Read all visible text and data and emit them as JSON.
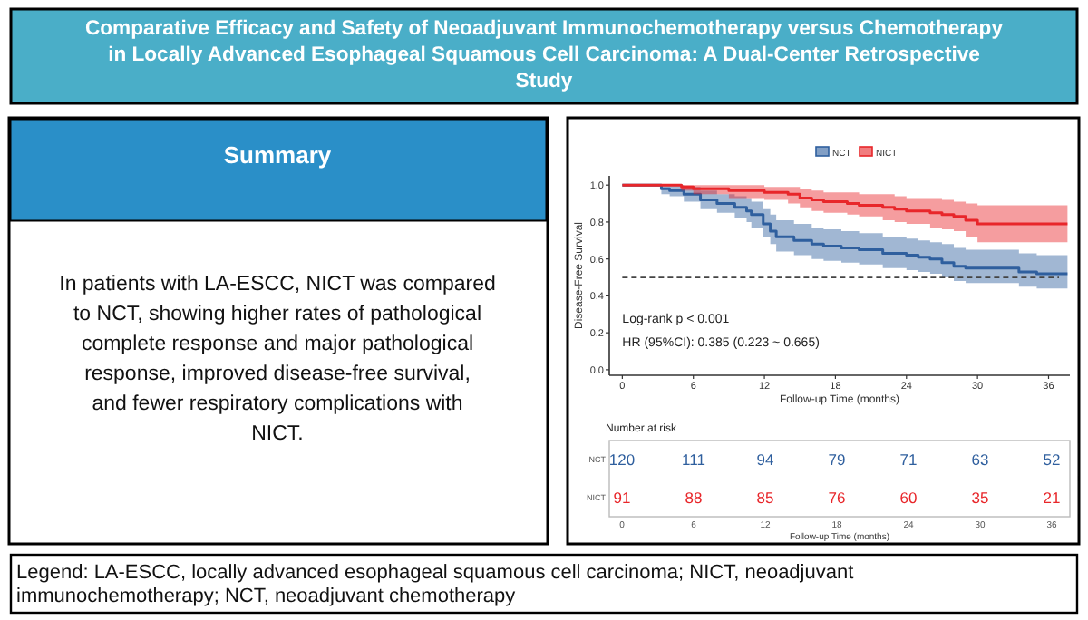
{
  "chart_data": [
    {
      "type": "other",
      "title": "Comparative Efficacy and Safety of Neoadjuvant Immunochemotherapy versus Chemotherapy in Locally Advanced Esophageal Squamous Cell Carcinoma: A Dual-Center Retrospective Study",
      "annotations": [
        "Summary",
        "In patients with LA-ESCC, NICT was compared to NCT, showing higher rates of pathological complete response and major pathological response, improved disease-free survival, and fewer respiratory complications with NICT.",
        "Legend: LA-ESCC, locally advanced esophageal squamous cell carcinoma; NICT, neoadjuvant immunochemotherapy; NCT,  neoadjuvant chemotherapy"
      ]
    },
    {
      "type": "step",
      "xlabel": "Follow-up Time (months)",
      "ylabel": "Disease-Free Survival",
      "xlim": [
        -1.1,
        37.8
      ],
      "ylim": [
        -0.03,
        1.05
      ],
      "xticks": [
        0,
        6,
        12,
        18,
        24,
        30,
        36
      ],
      "yticks": [
        {
          "value": 0,
          "label": "0.0"
        },
        {
          "value": 0.2,
          "label": "0.2"
        },
        {
          "value": 0.4,
          "label": "0.4"
        },
        {
          "value": 0.6,
          "label": "0.6"
        },
        {
          "value": 0.8,
          "label": "0.8"
        },
        {
          "value": 1,
          "label": "1.0"
        }
      ],
      "legend": "top",
      "grid": false,
      "series": [
        {
          "name": "NCT",
          "color": "#2f5f9e",
          "x": [
            0,
            3.3,
            4,
            5.2,
            6.6,
            8,
            9.5,
            10.5,
            10.9,
            11.9,
            12.5,
            13,
            14.5,
            16,
            17,
            18.5,
            20,
            22,
            24,
            25,
            26,
            27,
            28,
            29,
            33.5,
            35,
            37.6
          ],
          "values": [
            1,
            0.98,
            0.97,
            0.95,
            0.92,
            0.9,
            0.88,
            0.86,
            0.84,
            0.79,
            0.75,
            0.72,
            0.7,
            0.68,
            0.67,
            0.66,
            0.65,
            0.63,
            0.62,
            0.61,
            0.6,
            0.58,
            0.56,
            0.55,
            0.53,
            0.52,
            0.52
          ],
          "upper": [
            1,
            1,
            1,
            0.99,
            0.97,
            0.95,
            0.94,
            0.93,
            0.91,
            0.87,
            0.84,
            0.81,
            0.79,
            0.77,
            0.76,
            0.75,
            0.74,
            0.72,
            0.71,
            0.7,
            0.69,
            0.68,
            0.66,
            0.65,
            0.63,
            0.62,
            0.62
          ],
          "lower": [
            1,
            0.95,
            0.94,
            0.91,
            0.87,
            0.85,
            0.82,
            0.8,
            0.77,
            0.72,
            0.68,
            0.64,
            0.62,
            0.6,
            0.59,
            0.58,
            0.57,
            0.55,
            0.54,
            0.53,
            0.52,
            0.5,
            0.48,
            0.47,
            0.45,
            0.44,
            0.44
          ]
        },
        {
          "name": "NICT",
          "color": "#e8262a",
          "x": [
            0,
            5,
            6,
            9,
            12,
            14,
            15,
            16,
            17,
            19,
            20,
            22,
            23,
            24,
            26,
            27,
            28,
            29,
            30,
            37.6
          ],
          "values": [
            1,
            0.99,
            0.98,
            0.97,
            0.96,
            0.95,
            0.93,
            0.92,
            0.91,
            0.9,
            0.89,
            0.88,
            0.87,
            0.86,
            0.85,
            0.84,
            0.83,
            0.81,
            0.79,
            0.79
          ],
          "upper": [
            1,
            1,
            1,
            1,
            0.99,
            0.99,
            0.98,
            0.97,
            0.96,
            0.96,
            0.95,
            0.95,
            0.94,
            0.93,
            0.93,
            0.92,
            0.91,
            0.9,
            0.89,
            0.89
          ],
          "lower": [
            1,
            0.97,
            0.95,
            0.93,
            0.92,
            0.9,
            0.88,
            0.86,
            0.85,
            0.84,
            0.83,
            0.81,
            0.8,
            0.79,
            0.77,
            0.76,
            0.75,
            0.72,
            0.69,
            0.69
          ]
        }
      ],
      "ref_lines": [
        {
          "axis": "y",
          "value": 0.5,
          "line_style": "dashed"
        }
      ],
      "annotations": [
        "Log-rank  p < 0.001",
        "HR (95%CI): 0.385 (0.223 ~ 0.665)"
      ]
    },
    {
      "type": "heatmap",
      "title": "Number at risk",
      "xlabel": "Follow-up Time (months)",
      "categories": [
        "0",
        "6",
        "12",
        "18",
        "24",
        "30",
        "36"
      ],
      "y_categories": [
        "NCT",
        "NICT"
      ],
      "colors": [
        "#2f5f9e",
        "#e8262a"
      ],
      "data_labels": true,
      "cells": [
        [
          120,
          111,
          94,
          79,
          71,
          63,
          52
        ],
        [
          91,
          88,
          85,
          76,
          60,
          35,
          21
        ]
      ]
    }
  ]
}
